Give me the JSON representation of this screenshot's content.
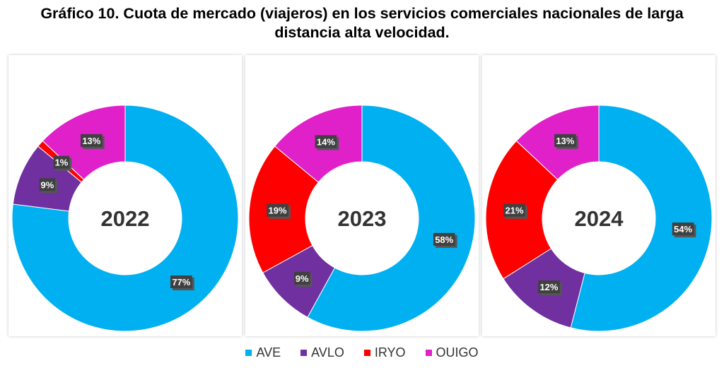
{
  "title_line1": "Gráfico 10. Cuota de mercado (viajeros) en los servicios comerciales nacionales de larga",
  "title_line2": "distancia alta velocidad.",
  "chart_data": {
    "type": "pie",
    "title": "Gráfico 10. Cuota de mercado (viajeros) en los servicios comerciales nacionales de larga distancia alta velocidad.",
    "series_names": [
      "AVE",
      "AVLO",
      "IRYO",
      "OUIGO"
    ],
    "colors": {
      "AVE": "#00B0F0",
      "AVLO": "#7030A0",
      "IRYO": "#FF0000",
      "OUIGO": "#E020C8"
    },
    "charts": [
      {
        "year": "2022",
        "values": [
          77,
          9,
          1,
          13
        ],
        "labels": [
          "77%",
          "9%",
          "1%",
          "13%"
        ]
      },
      {
        "year": "2023",
        "values": [
          58,
          9,
          19,
          14
        ],
        "labels": [
          "58%",
          "9%",
          "19%",
          "14%"
        ]
      },
      {
        "year": "2024",
        "values": [
          54,
          12,
          21,
          13
        ],
        "labels": [
          "54%",
          "12%",
          "21%",
          "13%"
        ]
      }
    ],
    "legend_position": "bottom"
  }
}
